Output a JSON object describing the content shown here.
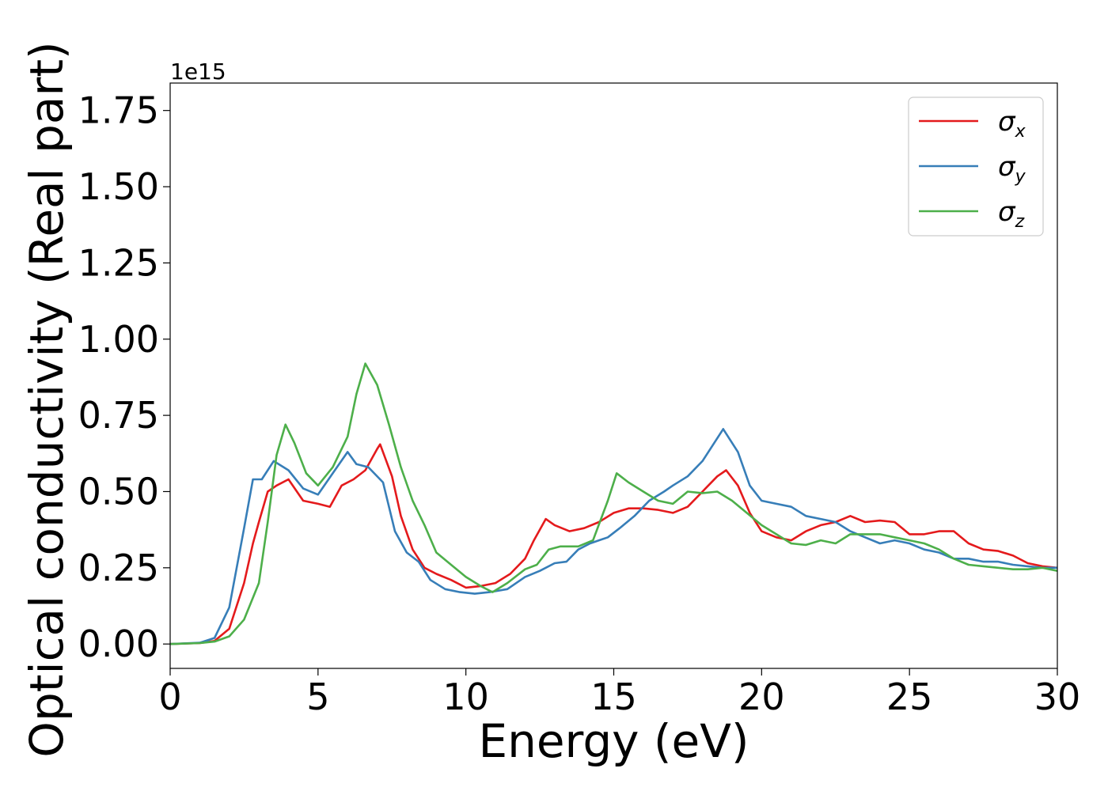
{
  "chart_data": {
    "type": "line",
    "title": "",
    "xlabel": "Energy (eV)",
    "ylabel": "Optical conductivity (Real part)",
    "y_offset_text": "1e15",
    "xlim": [
      0,
      30
    ],
    "ylim": [
      -0.08,
      1.84
    ],
    "xticks": [
      0,
      5,
      10,
      15,
      20,
      25,
      30
    ],
    "xtick_labels": [
      "0",
      "5",
      "10",
      "15",
      "20",
      "25",
      "30"
    ],
    "yticks": [
      0.0,
      0.25,
      0.5,
      0.75,
      1.0,
      1.25,
      1.5,
      1.75
    ],
    "ytick_labels": [
      "0.00",
      "0.25",
      "0.50",
      "0.75",
      "1.00",
      "1.25",
      "1.50",
      "1.75"
    ],
    "grid": false,
    "legend_position": "top-right",
    "series": [
      {
        "name": "σ",
        "sub": "x",
        "color": "#e41a1c",
        "points": [
          [
            0,
            0
          ],
          [
            1,
            0.003
          ],
          [
            1.5,
            0.01
          ],
          [
            2,
            0.05
          ],
          [
            2.5,
            0.2
          ],
          [
            2.8,
            0.33
          ],
          [
            3,
            0.4
          ],
          [
            3.3,
            0.5
          ],
          [
            3.6,
            0.52
          ],
          [
            4,
            0.54
          ],
          [
            4.5,
            0.47
          ],
          [
            5,
            0.46
          ],
          [
            5.4,
            0.45
          ],
          [
            5.8,
            0.52
          ],
          [
            6.2,
            0.54
          ],
          [
            6.6,
            0.57
          ],
          [
            7,
            0.64
          ],
          [
            7.1,
            0.655
          ],
          [
            7.5,
            0.55
          ],
          [
            7.8,
            0.42
          ],
          [
            8.2,
            0.31
          ],
          [
            8.6,
            0.25
          ],
          [
            9,
            0.23
          ],
          [
            9.5,
            0.21
          ],
          [
            10,
            0.185
          ],
          [
            10.5,
            0.19
          ],
          [
            11,
            0.2
          ],
          [
            11.5,
            0.23
          ],
          [
            12,
            0.28
          ],
          [
            12.3,
            0.34
          ],
          [
            12.7,
            0.41
          ],
          [
            13,
            0.39
          ],
          [
            13.5,
            0.37
          ],
          [
            14,
            0.38
          ],
          [
            14.5,
            0.4
          ],
          [
            15,
            0.43
          ],
          [
            15.5,
            0.445
          ],
          [
            16,
            0.445
          ],
          [
            16.5,
            0.44
          ],
          [
            17,
            0.43
          ],
          [
            17.5,
            0.45
          ],
          [
            18,
            0.5
          ],
          [
            18.5,
            0.55
          ],
          [
            18.8,
            0.57
          ],
          [
            19.2,
            0.52
          ],
          [
            19.6,
            0.43
          ],
          [
            20,
            0.37
          ],
          [
            20.5,
            0.35
          ],
          [
            21,
            0.34
          ],
          [
            21.5,
            0.37
          ],
          [
            22,
            0.39
          ],
          [
            22.5,
            0.4
          ],
          [
            23,
            0.42
          ],
          [
            23.5,
            0.4
          ],
          [
            24,
            0.405
          ],
          [
            24.5,
            0.4
          ],
          [
            25,
            0.36
          ],
          [
            25.5,
            0.36
          ],
          [
            26,
            0.37
          ],
          [
            26.5,
            0.37
          ],
          [
            27,
            0.33
          ],
          [
            27.5,
            0.31
          ],
          [
            28,
            0.305
          ],
          [
            28.5,
            0.29
          ],
          [
            29,
            0.265
          ],
          [
            29.5,
            0.255
          ],
          [
            30,
            0.25
          ]
        ]
      },
      {
        "name": "σ",
        "sub": "y",
        "color": "#377eb8",
        "points": [
          [
            0,
            0
          ],
          [
            1,
            0.004
          ],
          [
            1.5,
            0.02
          ],
          [
            2,
            0.12
          ],
          [
            2.5,
            0.38
          ],
          [
            2.8,
            0.54
          ],
          [
            3.1,
            0.54
          ],
          [
            3.5,
            0.6
          ],
          [
            4,
            0.57
          ],
          [
            4.5,
            0.51
          ],
          [
            5,
            0.49
          ],
          [
            5.5,
            0.56
          ],
          [
            6,
            0.63
          ],
          [
            6.3,
            0.59
          ],
          [
            6.7,
            0.58
          ],
          [
            7.2,
            0.53
          ],
          [
            7.6,
            0.37
          ],
          [
            8,
            0.3
          ],
          [
            8.4,
            0.27
          ],
          [
            8.8,
            0.21
          ],
          [
            9.3,
            0.18
          ],
          [
            9.8,
            0.17
          ],
          [
            10.3,
            0.165
          ],
          [
            10.8,
            0.17
          ],
          [
            11.4,
            0.18
          ],
          [
            12,
            0.22
          ],
          [
            12.5,
            0.24
          ],
          [
            13,
            0.265
          ],
          [
            13.4,
            0.27
          ],
          [
            13.8,
            0.31
          ],
          [
            14.2,
            0.33
          ],
          [
            14.8,
            0.35
          ],
          [
            15.2,
            0.38
          ],
          [
            15.7,
            0.42
          ],
          [
            16.2,
            0.47
          ],
          [
            16.7,
            0.5
          ],
          [
            17,
            0.52
          ],
          [
            17.5,
            0.55
          ],
          [
            18,
            0.6
          ],
          [
            18.7,
            0.705
          ],
          [
            19.2,
            0.63
          ],
          [
            19.6,
            0.52
          ],
          [
            20,
            0.47
          ],
          [
            20.5,
            0.46
          ],
          [
            21,
            0.45
          ],
          [
            21.5,
            0.42
          ],
          [
            22,
            0.41
          ],
          [
            22.5,
            0.4
          ],
          [
            23,
            0.37
          ],
          [
            23.5,
            0.35
          ],
          [
            24,
            0.33
          ],
          [
            24.5,
            0.34
          ],
          [
            25,
            0.33
          ],
          [
            25.5,
            0.31
          ],
          [
            26,
            0.3
          ],
          [
            26.5,
            0.28
          ],
          [
            27,
            0.28
          ],
          [
            27.5,
            0.27
          ],
          [
            28,
            0.27
          ],
          [
            28.5,
            0.26
          ],
          [
            29,
            0.255
          ],
          [
            29.5,
            0.25
          ],
          [
            30,
            0.25
          ]
        ]
      },
      {
        "name": "σ",
        "sub": "z",
        "color": "#4daf4a",
        "points": [
          [
            0,
            0
          ],
          [
            1,
            0.003
          ],
          [
            1.5,
            0.008
          ],
          [
            2,
            0.025
          ],
          [
            2.5,
            0.08
          ],
          [
            3,
            0.2
          ],
          [
            3.3,
            0.4
          ],
          [
            3.6,
            0.62
          ],
          [
            3.9,
            0.72
          ],
          [
            4.2,
            0.66
          ],
          [
            4.6,
            0.56
          ],
          [
            5,
            0.52
          ],
          [
            5.5,
            0.58
          ],
          [
            6,
            0.68
          ],
          [
            6.3,
            0.82
          ],
          [
            6.6,
            0.92
          ],
          [
            7,
            0.85
          ],
          [
            7.4,
            0.72
          ],
          [
            7.8,
            0.58
          ],
          [
            8.2,
            0.47
          ],
          [
            8.6,
            0.39
          ],
          [
            9,
            0.3
          ],
          [
            9.5,
            0.26
          ],
          [
            10,
            0.22
          ],
          [
            10.5,
            0.19
          ],
          [
            10.9,
            0.17
          ],
          [
            11.4,
            0.2
          ],
          [
            12,
            0.245
          ],
          [
            12.4,
            0.26
          ],
          [
            12.8,
            0.31
          ],
          [
            13.2,
            0.32
          ],
          [
            13.8,
            0.32
          ],
          [
            14.3,
            0.34
          ],
          [
            14.8,
            0.47
          ],
          [
            15.1,
            0.56
          ],
          [
            15.5,
            0.53
          ],
          [
            16,
            0.5
          ],
          [
            16.5,
            0.47
          ],
          [
            17,
            0.46
          ],
          [
            17.5,
            0.5
          ],
          [
            18,
            0.495
          ],
          [
            18.5,
            0.5
          ],
          [
            19,
            0.47
          ],
          [
            19.5,
            0.43
          ],
          [
            20,
            0.39
          ],
          [
            20.5,
            0.36
          ],
          [
            21,
            0.33
          ],
          [
            21.5,
            0.325
          ],
          [
            22,
            0.34
          ],
          [
            22.5,
            0.33
          ],
          [
            23,
            0.36
          ],
          [
            23.5,
            0.36
          ],
          [
            24,
            0.36
          ],
          [
            24.5,
            0.35
          ],
          [
            25,
            0.34
          ],
          [
            25.5,
            0.33
          ],
          [
            26,
            0.31
          ],
          [
            26.5,
            0.28
          ],
          [
            27,
            0.26
          ],
          [
            27.5,
            0.255
          ],
          [
            28,
            0.25
          ],
          [
            28.5,
            0.245
          ],
          [
            29,
            0.245
          ],
          [
            29.5,
            0.25
          ],
          [
            30,
            0.24
          ]
        ]
      }
    ]
  }
}
